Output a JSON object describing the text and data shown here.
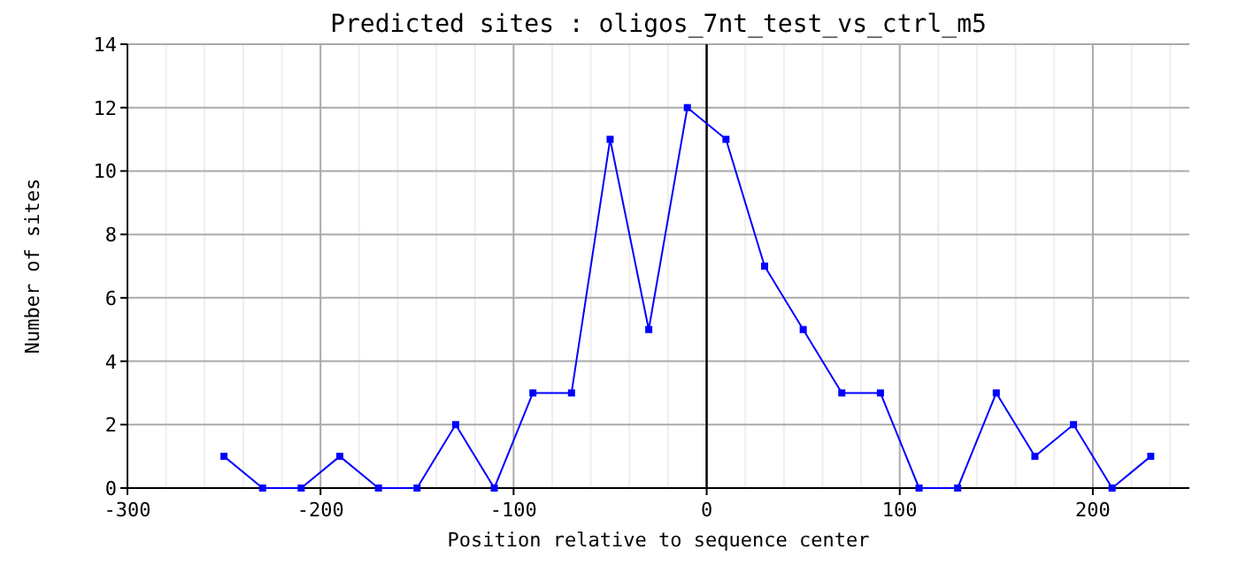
{
  "chart_data": {
    "type": "line",
    "title": "Predicted sites : oligos_7nt_test_vs_ctrl_m5",
    "xlabel": "Position relative to sequence center",
    "ylabel": "Number of sites",
    "x": [
      -250,
      -230,
      -210,
      -190,
      -170,
      -150,
      -130,
      -110,
      -90,
      -70,
      -50,
      -30,
      -10,
      10,
      30,
      50,
      70,
      90,
      110,
      130,
      150,
      170,
      190,
      210,
      230
    ],
    "series": [
      {
        "color": "#0000ff",
        "values": [
          1,
          0,
          0,
          1,
          0,
          0,
          2,
          0,
          3,
          3,
          11,
          5,
          12,
          11,
          7,
          5,
          3,
          3,
          0,
          0,
          3,
          1,
          2,
          0,
          1
        ]
      }
    ],
    "xlim": [
      -300,
      250
    ],
    "xticks": [
      -300,
      -200,
      -100,
      0,
      100,
      200
    ],
    "ylim": [
      0,
      14
    ],
    "yticks": [
      0,
      2,
      4,
      6,
      8,
      10,
      12,
      14
    ],
    "grid": true,
    "marker": "square",
    "line_style": "solid",
    "ref_lines": [
      {
        "axis": "x",
        "value": 0,
        "color": "#000000"
      }
    ]
  }
}
